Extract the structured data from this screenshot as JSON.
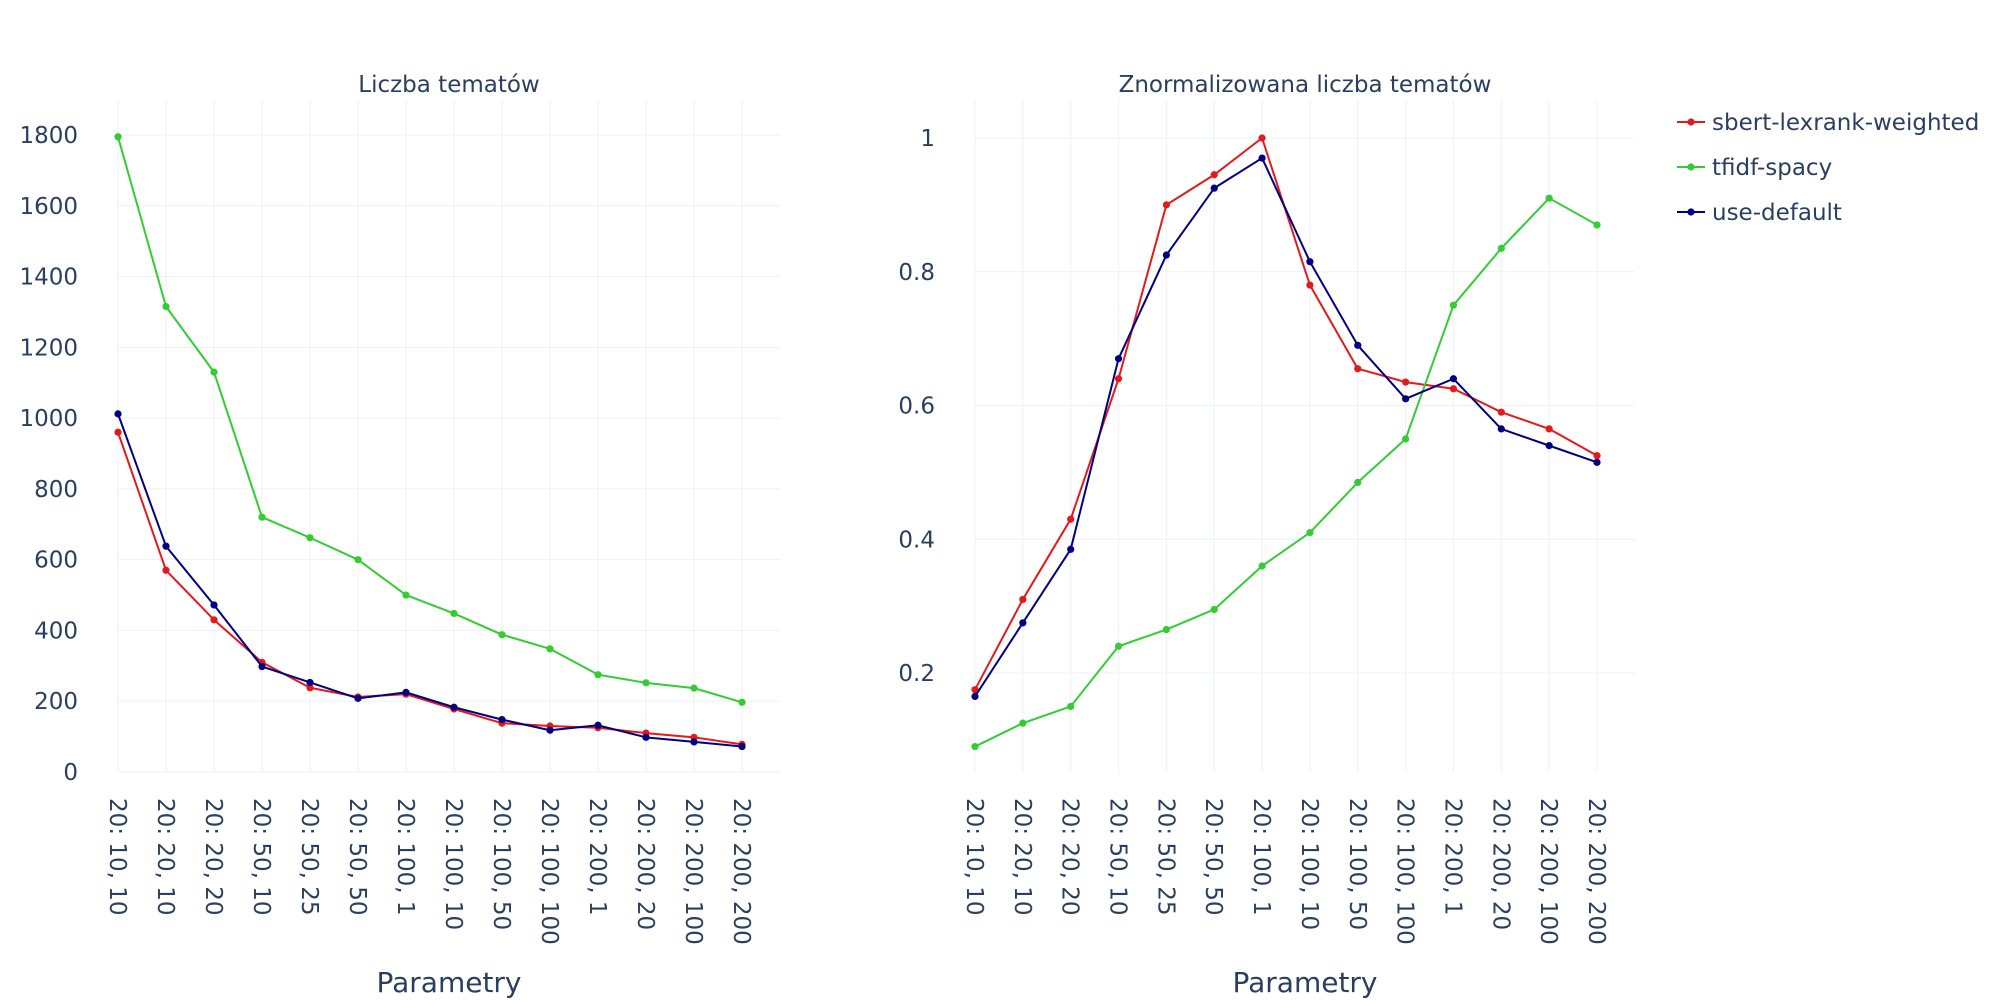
{
  "chart_data": [
    {
      "type": "line",
      "title": "Liczba tematów",
      "xlabel": "Parametry",
      "ylabel": "",
      "ylim": [
        0,
        1900
      ],
      "yticks": [
        0,
        200,
        400,
        600,
        800,
        1000,
        1200,
        1400,
        1600,
        1800
      ],
      "categories": [
        "20: 10, 10",
        "20: 20, 10",
        "20: 20, 20",
        "20: 50, 10",
        "20: 50, 25",
        "20: 50, 50",
        "20: 100, 1",
        "20: 100, 10",
        "20: 100, 50",
        "20: 100, 100",
        "20: 200, 1",
        "20: 200, 20",
        "20: 200, 100",
        "20: 200, 200"
      ],
      "series": [
        {
          "name": "sbert-lexrank-weighted",
          "color": "#e31a1c",
          "values": [
            960,
            570,
            430,
            310,
            238,
            212,
            220,
            178,
            138,
            130,
            125,
            110,
            98,
            78
          ]
        },
        {
          "name": "tfidf-spacy",
          "color": "#33cc33",
          "values": [
            1795,
            1315,
            1130,
            720,
            662,
            600,
            500,
            448,
            388,
            348,
            275,
            252,
            237,
            197
          ]
        },
        {
          "name": "use-default",
          "color": "#000080",
          "values": [
            1012,
            638,
            472,
            298,
            253,
            208,
            225,
            183,
            148,
            118,
            132,
            98,
            85,
            72
          ]
        }
      ]
    },
    {
      "type": "line",
      "title": "Znormalizowana liczba tematów",
      "xlabel": "Parametry",
      "ylabel": "",
      "ylim": [
        0.03,
        1.06
      ],
      "yticks": [
        0.2,
        0.4,
        0.6,
        0.8,
        1
      ],
      "ytick_labels": [
        "0.2",
        "0.4",
        "0.6",
        "0.8",
        "1"
      ],
      "categories": [
        "20: 10, 10",
        "20: 20, 10",
        "20: 20, 20",
        "20: 50, 10",
        "20: 50, 25",
        "20: 50, 50",
        "20: 100, 1",
        "20: 100, 10",
        "20: 100, 50",
        "20: 100, 100",
        "20: 200, 1",
        "20: 200, 20",
        "20: 200, 100",
        "20: 200, 200"
      ],
      "series": [
        {
          "name": "sbert-lexrank-weighted",
          "color": "#e31a1c",
          "values": [
            0.175,
            0.31,
            0.43,
            0.64,
            0.9,
            0.945,
            1.0,
            0.78,
            0.655,
            0.635,
            0.625,
            0.59,
            0.565,
            0.525
          ]
        },
        {
          "name": "tfidf-spacy",
          "color": "#33cc33",
          "values": [
            0.09,
            0.125,
            0.15,
            0.24,
            0.265,
            0.295,
            0.36,
            0.41,
            0.485,
            0.55,
            0.75,
            0.835,
            0.91,
            0.87
          ]
        },
        {
          "name": "use-default",
          "color": "#000080",
          "values": [
            0.165,
            0.275,
            0.385,
            0.67,
            0.825,
            0.925,
            0.97,
            0.815,
            0.69,
            0.61,
            0.64,
            0.565,
            0.54,
            0.515
          ]
        }
      ]
    }
  ],
  "legend": {
    "placement": "top-right",
    "items": [
      {
        "label": "sbert-lexrank-weighted",
        "color": "#e31a1c"
      },
      {
        "label": "tfidf-spacy",
        "color": "#33cc33"
      },
      {
        "label": "use-default",
        "color": "#000080"
      }
    ]
  }
}
